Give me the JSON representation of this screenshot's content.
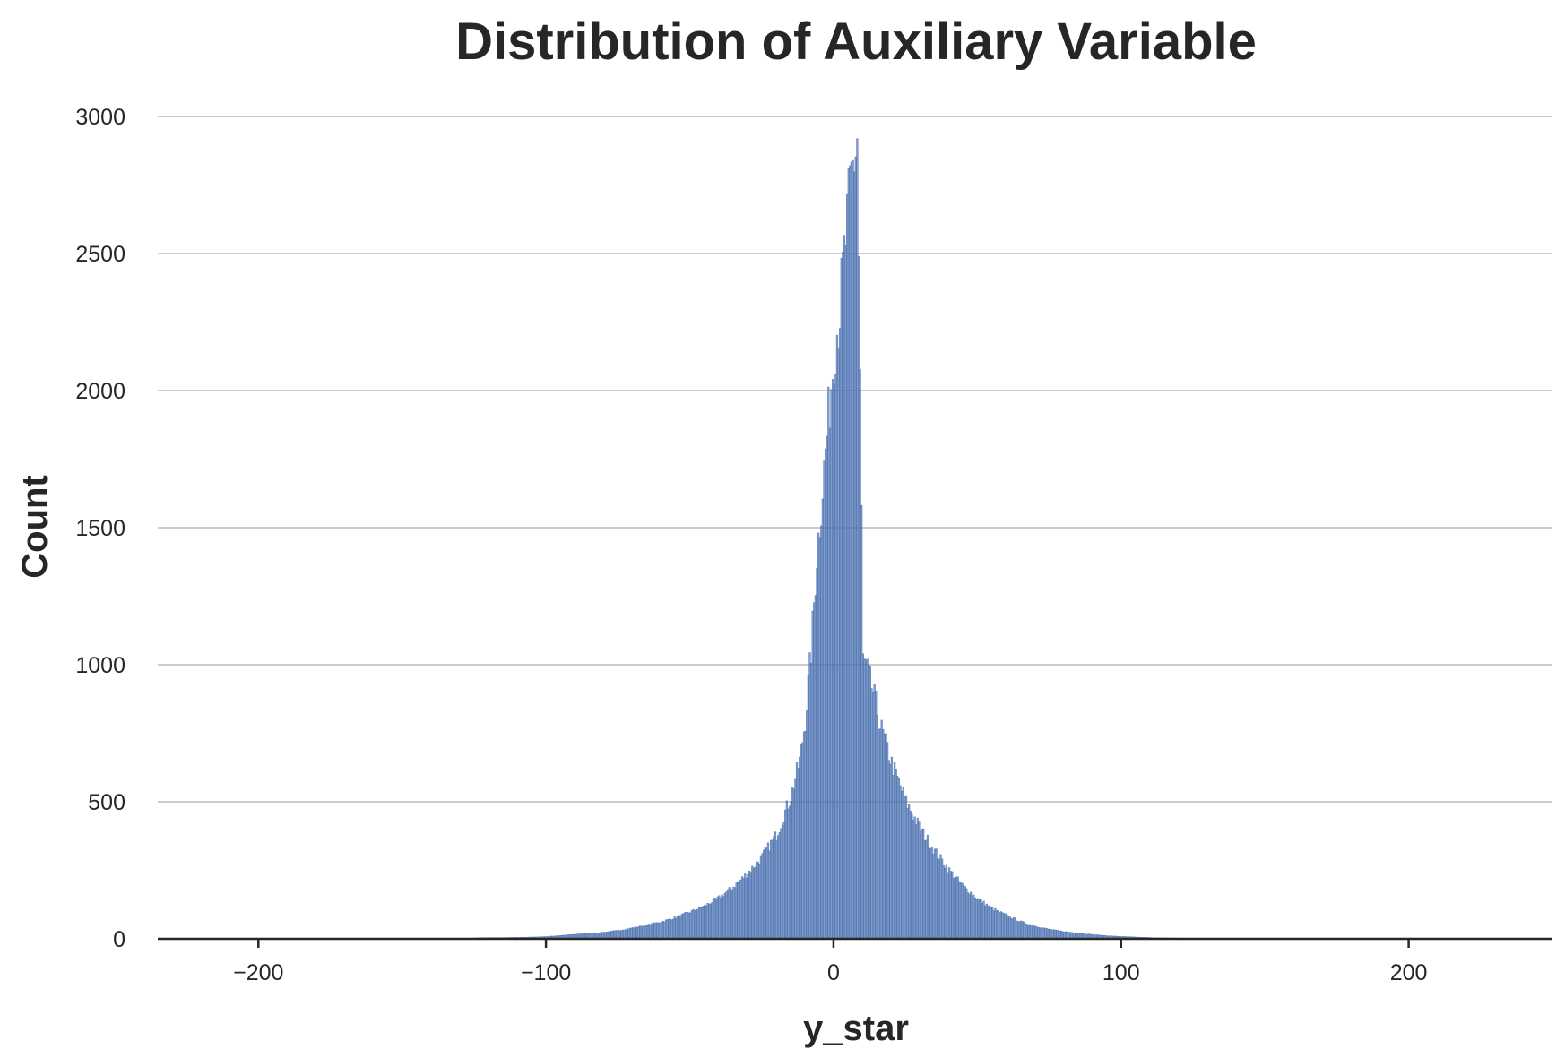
{
  "chart_data": {
    "type": "bar",
    "subtype": "histogram",
    "title": "Distribution of Auxiliary Variable",
    "xlabel": "y_star",
    "ylabel": "Count",
    "xlim": [
      -235,
      250
    ],
    "ylim": [
      0,
      3000
    ],
    "x_ticks": [
      -200,
      -100,
      0,
      100,
      200
    ],
    "x_tick_labels": [
      "−200",
      "−100",
      "0",
      "100",
      "200"
    ],
    "y_ticks": [
      0,
      500,
      1000,
      1500,
      2000,
      2500,
      3000
    ],
    "y_tick_labels": [
      "0",
      "500",
      "1000",
      "1500",
      "2000",
      "2500",
      "3000"
    ],
    "grid": "horizontal",
    "legend": "none",
    "bin_width": 1,
    "series": [
      {
        "color": "#4c72b0",
        "bins": [
          {
            "x": -125,
            "count": 3
          },
          {
            "x": -120,
            "count": 4
          },
          {
            "x": -115,
            "count": 4
          },
          {
            "x": -110,
            "count": 5
          },
          {
            "x": -105,
            "count": 6
          },
          {
            "x": -100,
            "count": 8
          },
          {
            "x": -95,
            "count": 12
          },
          {
            "x": -90,
            "count": 16
          },
          {
            "x": -85,
            "count": 20
          },
          {
            "x": -80,
            "count": 24
          },
          {
            "x": -75,
            "count": 30
          },
          {
            "x": -70,
            "count": 40
          },
          {
            "x": -65,
            "count": 50
          },
          {
            "x": -60,
            "count": 62
          },
          {
            "x": -55,
            "count": 78
          },
          {
            "x": -50,
            "count": 98
          },
          {
            "x": -45,
            "count": 120
          },
          {
            "x": -40,
            "count": 150
          },
          {
            "x": -35,
            "count": 190
          },
          {
            "x": -30,
            "count": 240
          },
          {
            "x": -25,
            "count": 300
          },
          {
            "x": -20,
            "count": 380
          },
          {
            "x": -15,
            "count": 520
          },
          {
            "x": -12,
            "count": 650
          },
          {
            "x": -10,
            "count": 800
          },
          {
            "x": -8,
            "count": 1050
          },
          {
            "x": -6,
            "count": 1400
          },
          {
            "x": -4,
            "count": 1650
          },
          {
            "x": -2,
            "count": 1900
          },
          {
            "x": 0,
            "count": 2150
          },
          {
            "x": 2,
            "count": 2300
          },
          {
            "x": 4,
            "count": 2550
          },
          {
            "x": 6,
            "count": 2780
          },
          {
            "x": 8,
            "count": 2920
          },
          {
            "x": 9,
            "count": 2060
          },
          {
            "x": 10,
            "count": 1020
          },
          {
            "x": 12,
            "count": 960
          },
          {
            "x": 14,
            "count": 880
          },
          {
            "x": 16,
            "count": 780
          },
          {
            "x": 20,
            "count": 640
          },
          {
            "x": 25,
            "count": 500
          },
          {
            "x": 30,
            "count": 400
          },
          {
            "x": 35,
            "count": 320
          },
          {
            "x": 40,
            "count": 250
          },
          {
            "x": 45,
            "count": 190
          },
          {
            "x": 50,
            "count": 145
          },
          {
            "x": 55,
            "count": 110
          },
          {
            "x": 60,
            "count": 85
          },
          {
            "x": 65,
            "count": 62
          },
          {
            "x": 70,
            "count": 46
          },
          {
            "x": 75,
            "count": 34
          },
          {
            "x": 80,
            "count": 26
          },
          {
            "x": 85,
            "count": 20
          },
          {
            "x": 90,
            "count": 15
          },
          {
            "x": 95,
            "count": 11
          },
          {
            "x": 100,
            "count": 8
          },
          {
            "x": 105,
            "count": 6
          },
          {
            "x": 110,
            "count": 4
          },
          {
            "x": 115,
            "count": 3
          },
          {
            "x": 120,
            "count": 2
          },
          {
            "x": 125,
            "count": 2
          },
          {
            "x": 130,
            "count": 1
          }
        ]
      }
    ]
  }
}
